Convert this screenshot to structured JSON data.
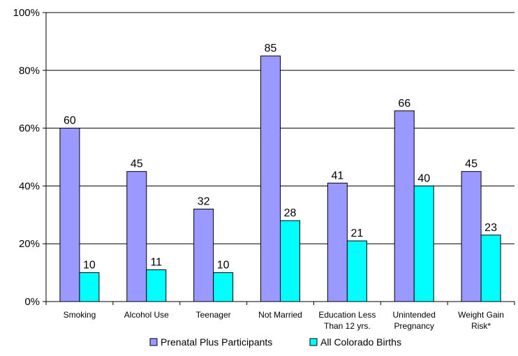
{
  "chart_data": {
    "type": "bar",
    "categories": [
      [
        "Smoking"
      ],
      [
        "Alcohol Use"
      ],
      [
        "Teenager"
      ],
      [
        "Not Married"
      ],
      [
        "Education Less",
        "Than 12 yrs."
      ],
      [
        "Unintended",
        "Pregnancy"
      ],
      [
        "Weight Gain",
        "Risk*"
      ]
    ],
    "series": [
      {
        "name": "Prenatal Plus Participants",
        "values": [
          60,
          45,
          32,
          85,
          41,
          66,
          45
        ],
        "color": "#9999ff"
      },
      {
        "name": "All Colorado Births",
        "values": [
          10,
          11,
          10,
          28,
          21,
          40,
          23
        ],
        "color": "#00ffff"
      }
    ],
    "ylim": [
      0,
      100
    ],
    "yticks": [
      0,
      20,
      40,
      60,
      80,
      100
    ],
    "ytick_labels": [
      "0%",
      "20%",
      "40%",
      "60%",
      "80%",
      "100%"
    ],
    "grid": true,
    "legend_position": "bottom"
  }
}
